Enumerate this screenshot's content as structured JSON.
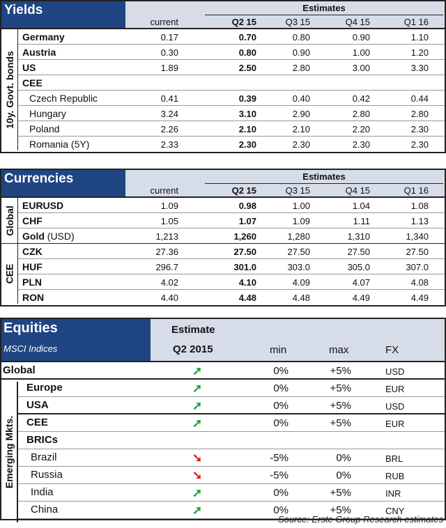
{
  "yields": {
    "title": "Yields",
    "estimates": "Estimates",
    "side_label": "10y. Govt. bonds",
    "columns": [
      "current",
      "Q2 15",
      "Q3 15",
      "Q4 15",
      "Q1 16"
    ],
    "rows": [
      {
        "name": "Germany",
        "values": [
          "0.17",
          "0.70",
          "0.80",
          "0.90",
          "1.10"
        ]
      },
      {
        "name": "Austria",
        "values": [
          "0.30",
          "0.80",
          "0.90",
          "1.00",
          "1.20"
        ]
      },
      {
        "name": "US",
        "values": [
          "1.89",
          "2.50",
          "2.80",
          "3.00",
          "3.30"
        ]
      },
      {
        "name": "CEE",
        "values": [
          "",
          "",
          "",
          "",
          ""
        ]
      },
      {
        "name": "Czech Republic",
        "values": [
          "0.41",
          "0.39",
          "0.40",
          "0.42",
          "0.44"
        ]
      },
      {
        "name": "Hungary",
        "values": [
          "3.24",
          "3.10",
          "2.90",
          "2.80",
          "2.80"
        ]
      },
      {
        "name": "Poland",
        "values": [
          "2.26",
          "2.10",
          "2.10",
          "2.20",
          "2.30"
        ]
      },
      {
        "name": "Romania (5Y)",
        "values": [
          "2.33",
          "2.30",
          "2.30",
          "2.30",
          "2.30"
        ]
      }
    ]
  },
  "currencies": {
    "title": "Currencies",
    "estimates": "Estimates",
    "group_global": "Global",
    "group_cee": "CEE",
    "columns": [
      "current",
      "Q2 15",
      "Q3 15",
      "Q4 15",
      "Q1 16"
    ],
    "rows": [
      {
        "name": "EURUSD",
        "values": [
          "1.09",
          "0.98",
          "1.00",
          "1.04",
          "1.08"
        ]
      },
      {
        "name": "CHF",
        "values": [
          "1.05",
          "1.07",
          "1.09",
          "1.11",
          "1.13"
        ]
      },
      {
        "name": "Gold",
        "suffix": "(USD)",
        "values": [
          "1,213",
          "1,260",
          "1,280",
          "1,310",
          "1,340"
        ]
      },
      {
        "name": "CZK",
        "values": [
          "27.36",
          "27.50",
          "27.50",
          "27.50",
          "27.50"
        ]
      },
      {
        "name": "HUF",
        "values": [
          "296.7",
          "301.0",
          "303.0",
          "305.0",
          "307.0"
        ]
      },
      {
        "name": "PLN",
        "values": [
          "4.02",
          "4.10",
          "4.09",
          "4.07",
          "4.08"
        ]
      },
      {
        "name": "RON",
        "values": [
          "4.40",
          "4.48",
          "4.48",
          "4.49",
          "4.49"
        ]
      }
    ]
  },
  "equities": {
    "title": "Equities",
    "subtitle": "MSCI Indices",
    "estimate": "Estimate",
    "period": "Q2 2015",
    "min": "min",
    "max": "max",
    "fx": "FX",
    "side_label": "Emerging Mkts.",
    "up_color": "#1aa33a",
    "down_color": "#e21b1b",
    "rows": [
      {
        "name": "Global",
        "trend": "up",
        "min": "0%",
        "max": "+5%",
        "fx": "USD"
      },
      {
        "name": "Europe",
        "trend": "up",
        "min": "0%",
        "max": "+5%",
        "fx": "EUR"
      },
      {
        "name": "USA",
        "trend": "up",
        "min": "0%",
        "max": "+5%",
        "fx": "USD"
      },
      {
        "name": "CEE",
        "trend": "up",
        "min": "0%",
        "max": "+5%",
        "fx": "EUR"
      },
      {
        "name": "BRICs",
        "trend": "",
        "min": "",
        "max": "",
        "fx": ""
      },
      {
        "name": "Brazil",
        "trend": "down",
        "min": "-5%",
        "max": "0%",
        "fx": "BRL"
      },
      {
        "name": "Russia",
        "trend": "down",
        "min": "-5%",
        "max": "0%",
        "fx": "RUB"
      },
      {
        "name": "India",
        "trend": "up",
        "min": "0%",
        "max": "+5%",
        "fx": "INR"
      },
      {
        "name": "China",
        "trend": "up",
        "min": "0%",
        "max": "+5%",
        "fx": "CNY"
      }
    ]
  },
  "source": "Source: Erste Group Research estimates"
}
